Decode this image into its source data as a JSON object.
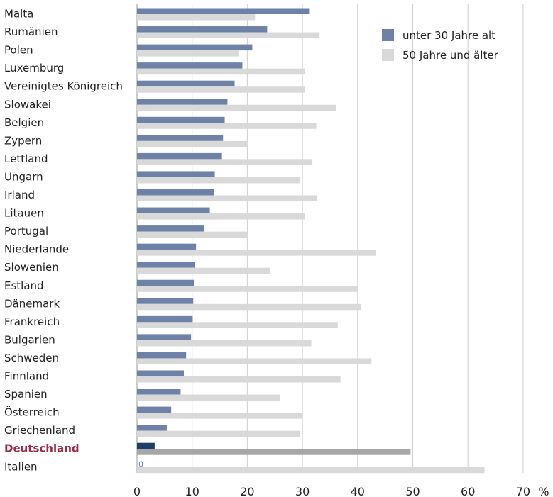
{
  "chart_data": {
    "type": "bar",
    "orientation": "horizontal",
    "categories": [
      "Malta",
      "Rumänien",
      "Polen",
      "Luxemburg",
      "Vereinigtes Königreich",
      "Slowakei",
      "Belgien",
      "Zypern",
      "Lettland",
      "Ungarn",
      "Irland",
      "Litauen",
      "Portugal",
      "Niederlande",
      "Slowenien",
      "Estland",
      "Dänemark",
      "Frankreich",
      "Bulgarien",
      "Schweden",
      "Finnland",
      "Spanien",
      "Österreich",
      "Griechenland",
      "Deutschland",
      "Italien"
    ],
    "highlight_category": "Deutschland",
    "series": [
      {
        "name": "unter 30 Jahre alt",
        "color": "#6e82a8",
        "highlight_color": "#1f3f66",
        "values": [
          31.2,
          23.6,
          20.9,
          19.1,
          17.7,
          16.4,
          15.9,
          15.6,
          15.4,
          14.1,
          14.0,
          13.2,
          12.1,
          10.7,
          10.5,
          10.3,
          10.2,
          10.1,
          9.8,
          8.9,
          8.5,
          7.9,
          6.2,
          5.4,
          3.2,
          0
        ]
      },
      {
        "name": "50 Jahre und älter",
        "color": "#d9d9d9",
        "highlight_color": "#a6a6a6",
        "values": [
          21.4,
          33.1,
          18.5,
          30.4,
          30.5,
          36.1,
          32.5,
          20.1,
          31.8,
          29.6,
          32.7,
          30.4,
          20.1,
          43.3,
          24.1,
          40.1,
          40.6,
          36.4,
          31.6,
          42.5,
          36.9,
          25.9,
          30.0,
          29.6,
          49.6,
          63.0
        ]
      }
    ],
    "data_labels": [
      {
        "category": "Italien",
        "series": "unter 30 Jahre alt",
        "text": "0"
      }
    ],
    "xlim": [
      0,
      70
    ],
    "xticks": [
      0,
      10,
      20,
      30,
      40,
      50,
      60,
      70
    ],
    "xunit": "%",
    "grid": "vertical",
    "legend_position": "top-right"
  }
}
